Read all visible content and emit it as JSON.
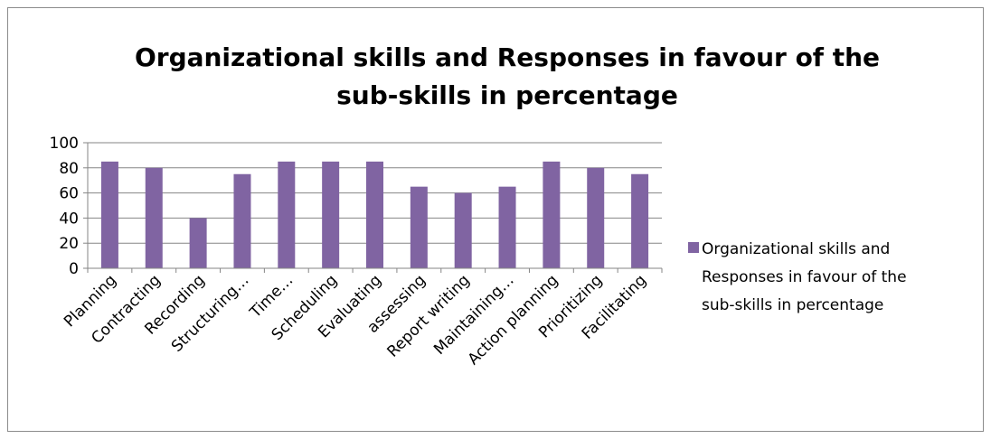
{
  "chart_data": {
    "type": "bar",
    "title_lines": [
      "Organizational skills and Responses in favour of the",
      "sub-skills in percentage"
    ],
    "xlabel": "",
    "ylabel": "",
    "categories": [
      "Planning",
      "Contracting",
      "Recording",
      "Structuring…",
      "Time…",
      "Scheduling",
      "Evaluating",
      "assessing",
      "Report writing",
      "Maintaining…",
      "Action planning",
      "Prioritizing",
      "Facilitating"
    ],
    "series": [
      {
        "name": "Organizational skills and Responses in favour of the sub-skills in percentage",
        "values": [
          85,
          80,
          40,
          75,
          85,
          85,
          85,
          65,
          60,
          65,
          85,
          80,
          75
        ]
      }
    ],
    "ylim": [
      0,
      100
    ],
    "yticks": [
      "0",
      "20",
      "40",
      "60",
      "80",
      "100"
    ],
    "grid": true,
    "legend_position": "right",
    "legend_lines": [
      "Organizational skills and",
      "Responses in favour of the",
      "sub-skills in percentage"
    ],
    "colors": {
      "bar": "#8064a2",
      "grid": "#868686",
      "axis": "#868686",
      "border": "#8c8c8c"
    }
  }
}
